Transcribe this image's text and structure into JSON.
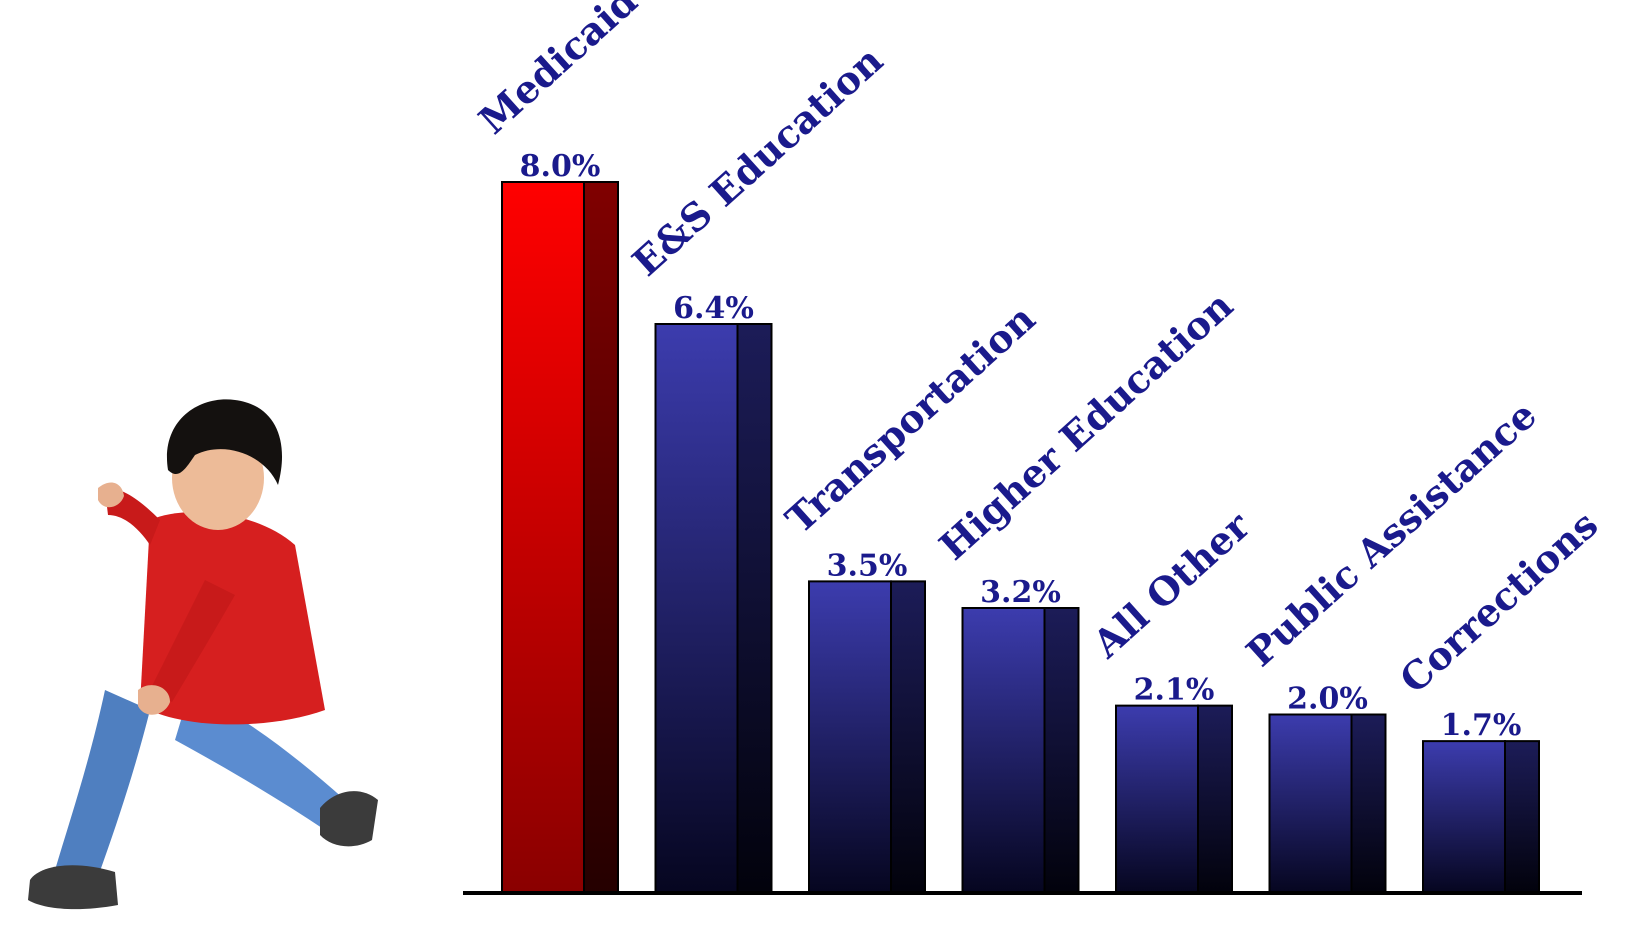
{
  "colors": {
    "highlight": "#ff0000",
    "highlight_dark": "#4a0000",
    "bar": "#3a3aa8",
    "bar_dark": "#080826",
    "label": "#1a1a8c",
    "axis": "#000000"
  },
  "chart_data": {
    "type": "bar",
    "categories": [
      "Medicaid",
      "E&S Education",
      "Transportation",
      "Higher Education",
      "All Other",
      "Public Assistance",
      "Corrections"
    ],
    "values": [
      8.0,
      6.4,
      3.5,
      3.2,
      2.1,
      2.0,
      1.7
    ],
    "value_labels": [
      "8.0%",
      "6.4%",
      "3.5%",
      "3.2%",
      "2.1%",
      "2.0%",
      "1.7%"
    ],
    "highlight_index": 0,
    "title": "",
    "xlabel": "",
    "ylabel": "",
    "ylim": [
      0,
      10
    ]
  }
}
